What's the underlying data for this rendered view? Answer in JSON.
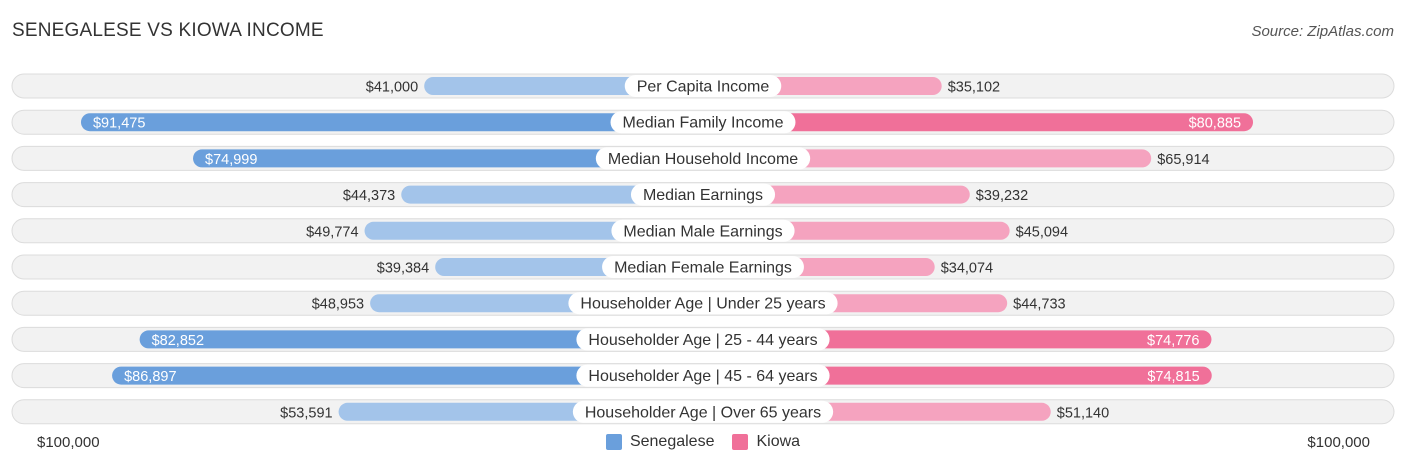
{
  "header": {
    "title": "SENEGALESE VS KIOWA INCOME",
    "source": "Source: ZipAtlas.com"
  },
  "colors": {
    "senegalese_dark": "#6a9fdc",
    "senegalese_light": "#a3c4ea",
    "kiowa_dark": "#f07099",
    "kiowa_light": "#f5a3bf",
    "row_bg": "#f2f2f2",
    "row_border": "#dcdcdc"
  },
  "axis": {
    "left_label": "$100,000",
    "right_label": "$100,000"
  },
  "legend": {
    "items": [
      {
        "label": "Senegalese",
        "color": "#6a9fdc"
      },
      {
        "label": "Kiowa",
        "color": "#f07099"
      }
    ]
  },
  "chart_data": {
    "type": "bar",
    "orientation": "diverging-horizontal",
    "title": "SENEGALESE VS KIOWA INCOME",
    "xlim": [
      0,
      100000
    ],
    "categories": [
      "Per Capita Income",
      "Median Family Income",
      "Median Household Income",
      "Median Earnings",
      "Median Male Earnings",
      "Median Female Earnings",
      "Householder Age | Under 25 years",
      "Householder Age | 25 - 44 years",
      "Householder Age | 45 - 64 years",
      "Householder Age | Over 65 years"
    ],
    "series": [
      {
        "name": "Senegalese",
        "values": [
          41000,
          91475,
          74999,
          44373,
          49774,
          39384,
          48953,
          82852,
          86897,
          53591
        ],
        "labels": [
          "$41,000",
          "$91,475",
          "$74,999",
          "$44,373",
          "$49,774",
          "$39,384",
          "$48,953",
          "$82,852",
          "$86,897",
          "$53,591"
        ]
      },
      {
        "name": "Kiowa",
        "values": [
          35102,
          80885,
          65914,
          39232,
          45094,
          34074,
          44733,
          74776,
          74815,
          51140
        ],
        "labels": [
          "$35,102",
          "$80,885",
          "$65,914",
          "$39,232",
          "$45,094",
          "$34,074",
          "$44,733",
          "$74,776",
          "$74,815",
          "$51,140"
        ]
      }
    ]
  }
}
